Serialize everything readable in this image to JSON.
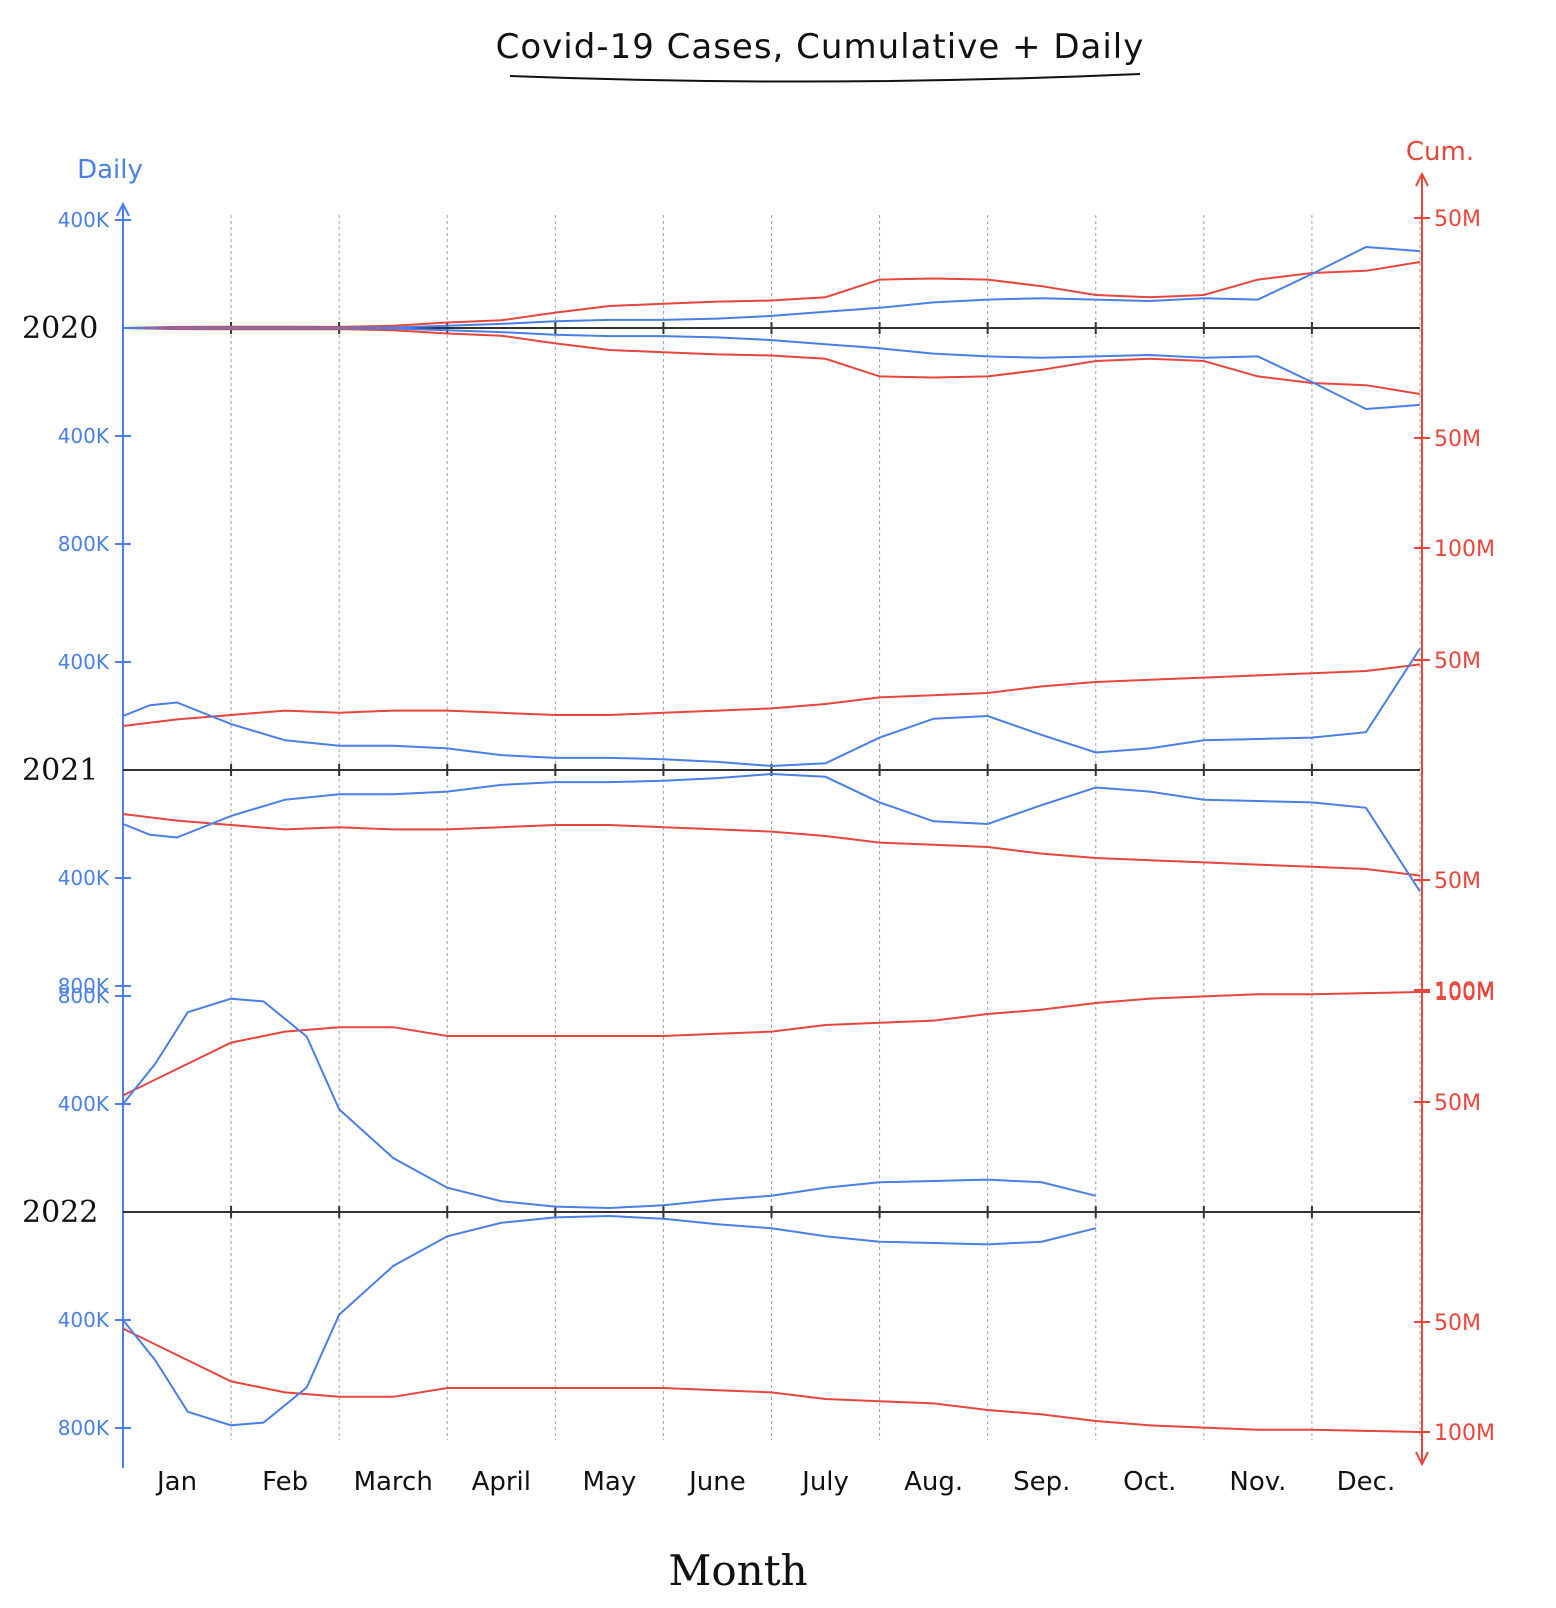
{
  "chart_data": {
    "type": "line",
    "title": "Covid-19 Cases, Cumulative + Daily",
    "xlabel": "Month",
    "ylabel_left": "Daily",
    "ylabel_right": "Cum.",
    "layout_note_free": true,
    "colors": {
      "daily": "#4a7fe8",
      "cumulative": "#e8463c",
      "baseline": "#333333",
      "grid": "#a0a0a0"
    },
    "months": [
      "Jan",
      "Feb",
      "March",
      "April",
      "May",
      "June",
      "July",
      "Aug.",
      "Sep.",
      "Oct.",
      "Nov.",
      "Dec."
    ],
    "panels": [
      {
        "year": "2020",
        "daily_ticks": [
          {
            "label": "400K",
            "value": 400000
          },
          {
            "label": "400K",
            "value": -400000
          },
          {
            "label": "800K",
            "value": -800000
          }
        ],
        "cum_ticks": [
          {
            "label": "50M",
            "value": 50000000
          },
          {
            "label": "50M",
            "value": -50000000
          },
          {
            "label": "100M",
            "value": -100000000
          }
        ],
        "daily": {
          "x": [
            0,
            0.5,
            1,
            1.5,
            2,
            2.5,
            3,
            3.5,
            4,
            4.5,
            5,
            5.5,
            6,
            6.5,
            7,
            7.5,
            8,
            8.5,
            9,
            9.5,
            10,
            10.5,
            11,
            11.5,
            12
          ],
          "y": [
            0,
            0,
            0,
            0,
            0,
            2000,
            8000,
            15000,
            25000,
            30000,
            30000,
            35000,
            45000,
            60000,
            75000,
            95000,
            105000,
            110000,
            105000,
            100000,
            110000,
            105000,
            200000,
            300000,
            285000
          ]
        },
        "cumulative": {
          "x": [
            0,
            0.5,
            1,
            1.5,
            2,
            2.5,
            3,
            3.5,
            4,
            4.5,
            5,
            5.5,
            6,
            6.5,
            7,
            7.5,
            8,
            8.5,
            9,
            9.5,
            10,
            10.5,
            11,
            11.5,
            12
          ],
          "y": [
            0,
            500000,
            600000,
            600000,
            500000,
            1000000,
            2500000,
            3500000,
            7000000,
            10000000,
            11000000,
            12000000,
            12500000,
            14000000,
            22000000,
            22500000,
            22000000,
            19000000,
            15000000,
            14000000,
            15000000,
            22000000,
            25000000,
            26000000,
            30000000
          ]
        }
      },
      {
        "year": "2021",
        "daily_ticks": [
          {
            "label": "400K",
            "value": 400000
          },
          {
            "label": "400K",
            "value": -400000
          },
          {
            "label": "800K",
            "value": -800000
          }
        ],
        "cum_ticks": [
          {
            "label": "50M",
            "value": 50000000
          },
          {
            "label": "50M",
            "value": -50000000
          },
          {
            "label": "100M",
            "value": -100000000
          }
        ],
        "daily": {
          "x": [
            0,
            0.25,
            0.5,
            1,
            1.5,
            2,
            2.5,
            3,
            3.5,
            4,
            4.5,
            5,
            5.5,
            6,
            6.5,
            7,
            7.5,
            8,
            8.5,
            9,
            9.5,
            10,
            10.5,
            11,
            11.5,
            12
          ],
          "y": [
            200000,
            240000,
            250000,
            170000,
            110000,
            90000,
            90000,
            80000,
            55000,
            45000,
            45000,
            40000,
            30000,
            15000,
            25000,
            120000,
            190000,
            200000,
            130000,
            65000,
            80000,
            110000,
            115000,
            120000,
            140000,
            450000
          ]
        },
        "cumulative": {
          "x": [
            0,
            0.5,
            1,
            1.5,
            2,
            2.5,
            3,
            3.5,
            4,
            4.5,
            5,
            5.5,
            6,
            6.5,
            7,
            7.5,
            8,
            8.5,
            9,
            9.5,
            10,
            10.5,
            11,
            11.5,
            12
          ],
          "y": [
            20000000,
            23000000,
            25000000,
            27000000,
            26000000,
            27000000,
            27000000,
            26000000,
            25000000,
            25000000,
            26000000,
            27000000,
            28000000,
            30000000,
            33000000,
            34000000,
            35000000,
            38000000,
            40000000,
            41000000,
            42000000,
            43000000,
            44000000,
            45000000,
            48000000
          ]
        }
      },
      {
        "year": "2022",
        "daily_ticks": [
          {
            "label": "800K",
            "value": 800000
          },
          {
            "label": "400K",
            "value": 400000
          },
          {
            "label": "400K",
            "value": -400000
          },
          {
            "label": "800K",
            "value": -800000
          }
        ],
        "cum_ticks": [
          {
            "label": "100M",
            "value": 100000000
          },
          {
            "label": "50M",
            "value": 50000000
          },
          {
            "label": "50M",
            "value": -50000000
          },
          {
            "label": "100M",
            "value": -100000000
          }
        ],
        "daily": {
          "x": [
            0,
            0.3,
            0.6,
            1,
            1.3,
            1.7,
            2,
            2.5,
            3,
            3.5,
            4,
            4.5,
            5,
            5.5,
            6,
            6.5,
            7,
            7.5,
            8,
            8.5,
            9
          ],
          "y": [
            400000,
            550000,
            740000,
            790000,
            780000,
            650000,
            380000,
            200000,
            90000,
            40000,
            20000,
            15000,
            25000,
            45000,
            60000,
            90000,
            110000,
            115000,
            120000,
            110000,
            60000
          ]
        },
        "cumulative": {
          "x": [
            0,
            0.5,
            1,
            1.5,
            2,
            2.5,
            3,
            3.5,
            4,
            4.5,
            5,
            5.5,
            6,
            6.5,
            7,
            7.5,
            8,
            8.5,
            9,
            9.5,
            10,
            10.5,
            11,
            11.5,
            12
          ],
          "y": [
            53000000,
            65000000,
            77000000,
            82000000,
            84000000,
            84000000,
            80000000,
            80000000,
            80000000,
            80000000,
            80000000,
            81000000,
            82000000,
            85000000,
            86000000,
            87000000,
            90000000,
            92000000,
            95000000,
            97000000,
            98000000,
            99000000,
            99000000,
            99500000,
            100000000
          ]
        }
      }
    ]
  }
}
